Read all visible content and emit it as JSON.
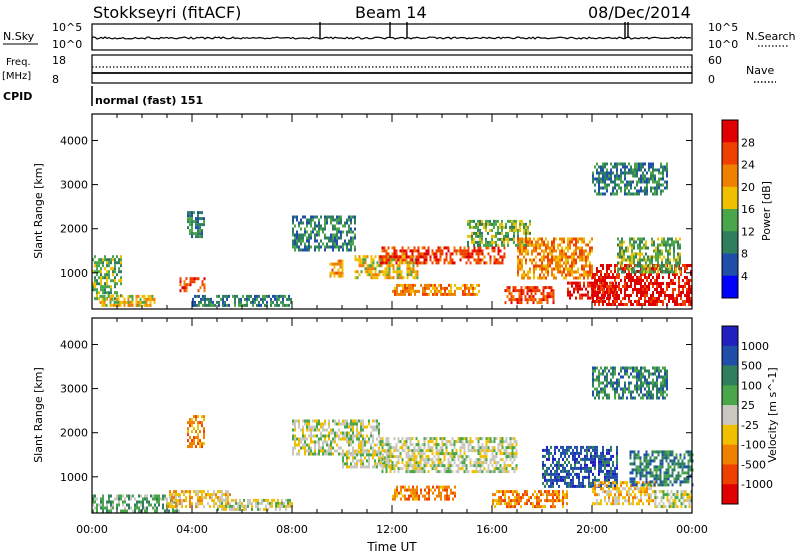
{
  "header": {
    "station": "Stokkseyri (fitACF)",
    "beam": "Beam 14",
    "date": "08/Dec/2014"
  },
  "status_panels": {
    "nsky_label": "N.Sky",
    "nsky_ticks": [
      "10^5",
      "10^0"
    ],
    "nsearch_label": "N.Search",
    "nsearch_ticks": [
      "10^5",
      "10^0"
    ],
    "freq_label_1": "Freq.",
    "freq_label_2": "[MHz]",
    "freq_ticks": [
      "18",
      "8"
    ],
    "nave_label": "Nave",
    "nave_ticks": [
      "60",
      "0"
    ],
    "cpid_label": "CPID",
    "cpid_value": "normal (fast) 151"
  },
  "x_axis": {
    "label": "Time UT",
    "ticks": [
      "00:00",
      "04:00",
      "08:00",
      "12:00",
      "16:00",
      "20:00",
      "00:00"
    ]
  },
  "colors": {
    "power": [
      "#0000ff",
      "#1f4fa8",
      "#2f7f5f",
      "#4aa64a",
      "#f0c000",
      "#f08000",
      "#f04000",
      "#e00000"
    ],
    "velocity": [
      "#e00000",
      "#f04000",
      "#f08000",
      "#f0c000",
      "#c8c8c0",
      "#4aa64a",
      "#2f7f5f",
      "#1f4fa8",
      "#2020c0"
    ]
  },
  "chart_data": [
    {
      "type": "heatmap",
      "ylabel": "Slant Range [km]",
      "ylim": [
        180,
        4600
      ],
      "xlim": [
        0,
        24
      ],
      "y_ticks": [
        "1000",
        "2000",
        "3000",
        "4000"
      ],
      "colorbar_label": "Power [dB]",
      "colorbar_ticks": [
        "4",
        "8",
        "12",
        "16",
        "20",
        "24",
        "28"
      ],
      "regions": [
        {
          "x": [
            0.0,
            1.2
          ],
          "y": [
            400,
            1400
          ],
          "level": 3
        },
        {
          "x": [
            0.3,
            2.5
          ],
          "y": [
            250,
            500
          ],
          "level": 4
        },
        {
          "x": [
            3.5,
            4.5
          ],
          "y": [
            600,
            900
          ],
          "level": 6
        },
        {
          "x": [
            3.8,
            4.5
          ],
          "y": [
            1800,
            2400
          ],
          "level": 2
        },
        {
          "x": [
            4.0,
            8.0
          ],
          "y": [
            250,
            500
          ],
          "level": 2
        },
        {
          "x": [
            8.0,
            10.5
          ],
          "y": [
            1500,
            2300
          ],
          "level": 2
        },
        {
          "x": [
            9.5,
            10.0
          ],
          "y": [
            900,
            1300
          ],
          "level": 5
        },
        {
          "x": [
            10.5,
            13.0
          ],
          "y": [
            900,
            1400
          ],
          "level": 4
        },
        {
          "x": [
            11.5,
            16.5
          ],
          "y": [
            1200,
            1600
          ],
          "level": 6
        },
        {
          "x": [
            12.0,
            15.5
          ],
          "y": [
            500,
            750
          ],
          "level": 5
        },
        {
          "x": [
            15.0,
            17.5
          ],
          "y": [
            1600,
            2200
          ],
          "level": 3
        },
        {
          "x": [
            16.5,
            18.5
          ],
          "y": [
            300,
            700
          ],
          "level": 6
        },
        {
          "x": [
            17.0,
            20.0
          ],
          "y": [
            900,
            1800
          ],
          "level": 5
        },
        {
          "x": [
            19.0,
            21.0
          ],
          "y": [
            400,
            800
          ],
          "level": 7
        },
        {
          "x": [
            20.0,
            24.0
          ],
          "y": [
            300,
            1200
          ],
          "level": 7
        },
        {
          "x": [
            21.0,
            23.5
          ],
          "y": [
            1000,
            1800
          ],
          "level": 3
        },
        {
          "x": [
            20.0,
            23.0
          ],
          "y": [
            2800,
            3500
          ],
          "level": 2
        }
      ]
    },
    {
      "type": "heatmap",
      "ylabel": "Slant Range [km]",
      "ylim": [
        180,
        4600
      ],
      "xlim": [
        0,
        24
      ],
      "y_ticks": [
        "1000",
        "2000",
        "3000",
        "4000"
      ],
      "colorbar_label": "Velocity [m s^-1]",
      "colorbar_ticks": [
        "1000",
        "500",
        "100",
        "25",
        "-25",
        "-100",
        "-500",
        "-1000"
      ],
      "regions": [
        {
          "x": [
            0.0,
            3.5
          ],
          "y": [
            250,
            600
          ],
          "level": 5
        },
        {
          "x": [
            3.0,
            5.5
          ],
          "y": [
            300,
            700
          ],
          "level": 3
        },
        {
          "x": [
            3.8,
            4.5
          ],
          "y": [
            1700,
            2400
          ],
          "level": 2
        },
        {
          "x": [
            5.0,
            8.0
          ],
          "y": [
            250,
            500
          ],
          "level": 4
        },
        {
          "x": [
            8.0,
            11.5
          ],
          "y": [
            1500,
            2300
          ],
          "level": 4
        },
        {
          "x": [
            10.0,
            12.0
          ],
          "y": [
            1200,
            1600
          ],
          "level": 4
        },
        {
          "x": [
            11.5,
            17.0
          ],
          "y": [
            1100,
            1900
          ],
          "level": 4
        },
        {
          "x": [
            12.0,
            14.5
          ],
          "y": [
            500,
            800
          ],
          "level": 2
        },
        {
          "x": [
            16.0,
            19.0
          ],
          "y": [
            300,
            700
          ],
          "level": 2
        },
        {
          "x": [
            18.0,
            21.0
          ],
          "y": [
            800,
            1700
          ],
          "level": 7
        },
        {
          "x": [
            20.0,
            22.5
          ],
          "y": [
            400,
            900
          ],
          "level": 3
        },
        {
          "x": [
            21.5,
            24.0
          ],
          "y": [
            800,
            1600
          ],
          "level": 6
        },
        {
          "x": [
            22.5,
            24.0
          ],
          "y": [
            300,
            700
          ],
          "level": 4
        },
        {
          "x": [
            20.0,
            23.0
          ],
          "y": [
            2800,
            3500
          ],
          "level": 6
        }
      ]
    }
  ]
}
